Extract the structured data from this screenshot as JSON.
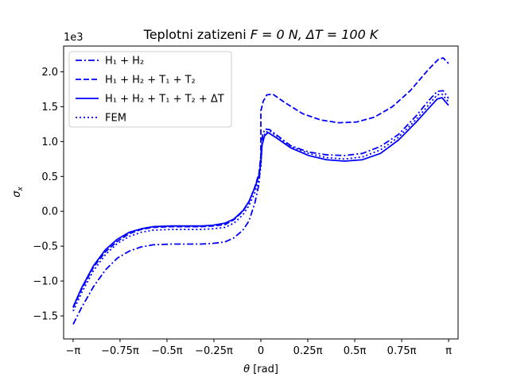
{
  "chart_data": {
    "type": "line",
    "title_prefix": "Teplotni zatizeni  ",
    "title_math": "F = 0 N, ΔT = 100 K",
    "title": "Teplotni zatizeni  F = 0 N, ΔT = 100 K",
    "xlabel_symbol": "θ",
    "xlabel_unit": " [rad]",
    "ylabel_symbol": "σ",
    "ylabel_sub": "x",
    "y_offset_text": "1e3",
    "xlim": [
      -3.3,
      3.3
    ],
    "ylim": [
      -1.83,
      2.37
    ],
    "grid": false,
    "legend_position": "upper-left",
    "x_ticks": [
      {
        "value": -3.14159,
        "label": "−π"
      },
      {
        "value": -2.35619,
        "label": "−0.75π"
      },
      {
        "value": -1.5708,
        "label": "−0.5π"
      },
      {
        "value": -0.7854,
        "label": "−0.25π"
      },
      {
        "value": 0,
        "label": "0"
      },
      {
        "value": 0.7854,
        "label": "0.25π"
      },
      {
        "value": 1.5708,
        "label": "0.5π"
      },
      {
        "value": 2.35619,
        "label": "0.75π"
      },
      {
        "value": 3.14159,
        "label": "π"
      }
    ],
    "y_ticks": [
      {
        "value": -1.5,
        "label": "−1.5"
      },
      {
        "value": -1.0,
        "label": "−1.0"
      },
      {
        "value": -0.5,
        "label": "−0.5"
      },
      {
        "value": 0.0,
        "label": "0.0"
      },
      {
        "value": 0.5,
        "label": "0.5"
      },
      {
        "value": 1.0,
        "label": "1.0"
      },
      {
        "value": 1.5,
        "label": "1.5"
      },
      {
        "value": 2.0,
        "label": "2.0"
      }
    ],
    "series": [
      {
        "name": "H1 + H2",
        "legend_label": "H₁ + H₂",
        "color": "#0000ff",
        "style": "dashdot",
        "points": [
          [
            -3.14,
            -1.62
          ],
          [
            -3.0,
            -1.38
          ],
          [
            -2.8,
            -1.08
          ],
          [
            -2.6,
            -0.84
          ],
          [
            -2.4,
            -0.67
          ],
          [
            -2.2,
            -0.57
          ],
          [
            -2.0,
            -0.51
          ],
          [
            -1.8,
            -0.48
          ],
          [
            -1.5,
            -0.47
          ],
          [
            -1.2,
            -0.47
          ],
          [
            -1.0,
            -0.47
          ],
          [
            -0.8,
            -0.46
          ],
          [
            -0.6,
            -0.44
          ],
          [
            -0.45,
            -0.38
          ],
          [
            -0.3,
            -0.27
          ],
          [
            -0.2,
            -0.14
          ],
          [
            -0.1,
            0.12
          ],
          [
            -0.03,
            0.4
          ],
          [
            0.0,
            0.8
          ],
          [
            0.03,
            1.1
          ],
          [
            0.07,
            1.18
          ],
          [
            0.15,
            1.17
          ],
          [
            0.3,
            1.07
          ],
          [
            0.5,
            0.94
          ],
          [
            0.8,
            0.85
          ],
          [
            1.1,
            0.81
          ],
          [
            1.4,
            0.8
          ],
          [
            1.7,
            0.83
          ],
          [
            2.0,
            0.93
          ],
          [
            2.3,
            1.1
          ],
          [
            2.6,
            1.37
          ],
          [
            2.8,
            1.58
          ],
          [
            2.95,
            1.72
          ],
          [
            3.05,
            1.73
          ],
          [
            3.14,
            1.62
          ]
        ]
      },
      {
        "name": "H1 + H2 + T1 + T2",
        "legend_label": "H₁ + H₂ + T₁ + T₂",
        "color": "#0000ff",
        "style": "dashed",
        "points": [
          [
            -3.14,
            -1.38
          ],
          [
            -3.0,
            -1.12
          ],
          [
            -2.8,
            -0.8
          ],
          [
            -2.6,
            -0.58
          ],
          [
            -2.4,
            -0.43
          ],
          [
            -2.2,
            -0.32
          ],
          [
            -2.0,
            -0.26
          ],
          [
            -1.8,
            -0.23
          ],
          [
            -1.5,
            -0.22
          ],
          [
            -1.2,
            -0.22
          ],
          [
            -1.0,
            -0.22
          ],
          [
            -0.8,
            -0.21
          ],
          [
            -0.6,
            -0.19
          ],
          [
            -0.45,
            -0.12
          ],
          [
            -0.3,
            0.0
          ],
          [
            -0.2,
            0.13
          ],
          [
            -0.1,
            0.35
          ],
          [
            -0.03,
            0.55
          ],
          [
            0.0,
            0.8
          ],
          [
            0.0,
            1.44
          ],
          [
            0.04,
            1.58
          ],
          [
            0.1,
            1.67
          ],
          [
            0.2,
            1.68
          ],
          [
            0.4,
            1.56
          ],
          [
            0.7,
            1.4
          ],
          [
            1.0,
            1.31
          ],
          [
            1.3,
            1.27
          ],
          [
            1.6,
            1.28
          ],
          [
            1.9,
            1.35
          ],
          [
            2.2,
            1.5
          ],
          [
            2.5,
            1.73
          ],
          [
            2.8,
            2.03
          ],
          [
            2.97,
            2.18
          ],
          [
            3.05,
            2.2
          ],
          [
            3.14,
            2.12
          ]
        ]
      },
      {
        "name": "H1 + H2 + T1 + T2 + ΔT",
        "legend_label": "H₁ + H₂ + T₁ + T₂ + ΔT",
        "color": "#0000ff",
        "style": "solid",
        "points": [
          [
            -3.14,
            -1.37
          ],
          [
            -3.0,
            -1.1
          ],
          [
            -2.8,
            -0.78
          ],
          [
            -2.6,
            -0.55
          ],
          [
            -2.4,
            -0.4
          ],
          [
            -2.2,
            -0.3
          ],
          [
            -2.0,
            -0.25
          ],
          [
            -1.8,
            -0.22
          ],
          [
            -1.5,
            -0.21
          ],
          [
            -1.2,
            -0.21
          ],
          [
            -1.0,
            -0.21
          ],
          [
            -0.8,
            -0.2
          ],
          [
            -0.6,
            -0.17
          ],
          [
            -0.45,
            -0.11
          ],
          [
            -0.3,
            0.01
          ],
          [
            -0.2,
            0.14
          ],
          [
            -0.1,
            0.34
          ],
          [
            -0.03,
            0.52
          ],
          [
            0.0,
            0.7
          ],
          [
            0.02,
            0.95
          ],
          [
            0.06,
            1.08
          ],
          [
            0.12,
            1.13
          ],
          [
            0.25,
            1.06
          ],
          [
            0.5,
            0.91
          ],
          [
            0.8,
            0.8
          ],
          [
            1.1,
            0.74
          ],
          [
            1.4,
            0.72
          ],
          [
            1.7,
            0.74
          ],
          [
            2.0,
            0.83
          ],
          [
            2.3,
            1.02
          ],
          [
            2.6,
            1.28
          ],
          [
            2.8,
            1.47
          ],
          [
            2.95,
            1.61
          ],
          [
            3.03,
            1.63
          ],
          [
            3.14,
            1.52
          ]
        ]
      },
      {
        "name": "FEM",
        "legend_label": "FEM",
        "color": "#0000ff",
        "style": "dotted",
        "points": [
          [
            -3.14,
            -1.43
          ],
          [
            -3.0,
            -1.17
          ],
          [
            -2.8,
            -0.85
          ],
          [
            -2.6,
            -0.62
          ],
          [
            -2.4,
            -0.46
          ],
          [
            -2.2,
            -0.36
          ],
          [
            -2.0,
            -0.3
          ],
          [
            -1.8,
            -0.27
          ],
          [
            -1.5,
            -0.26
          ],
          [
            -1.2,
            -0.26
          ],
          [
            -1.0,
            -0.26
          ],
          [
            -0.8,
            -0.25
          ],
          [
            -0.6,
            -0.23
          ],
          [
            -0.45,
            -0.17
          ],
          [
            -0.3,
            -0.05
          ],
          [
            -0.2,
            0.08
          ],
          [
            -0.1,
            0.27
          ],
          [
            -0.03,
            0.47
          ],
          [
            0.0,
            0.64
          ],
          [
            0.02,
            0.95
          ],
          [
            0.07,
            1.13
          ],
          [
            0.15,
            1.15
          ],
          [
            0.3,
            1.06
          ],
          [
            0.5,
            0.93
          ],
          [
            0.8,
            0.83
          ],
          [
            1.1,
            0.77
          ],
          [
            1.4,
            0.75
          ],
          [
            1.7,
            0.78
          ],
          [
            2.0,
            0.88
          ],
          [
            2.3,
            1.06
          ],
          [
            2.6,
            1.32
          ],
          [
            2.8,
            1.52
          ],
          [
            2.95,
            1.67
          ],
          [
            3.03,
            1.68
          ],
          [
            3.14,
            1.57
          ]
        ]
      }
    ]
  }
}
